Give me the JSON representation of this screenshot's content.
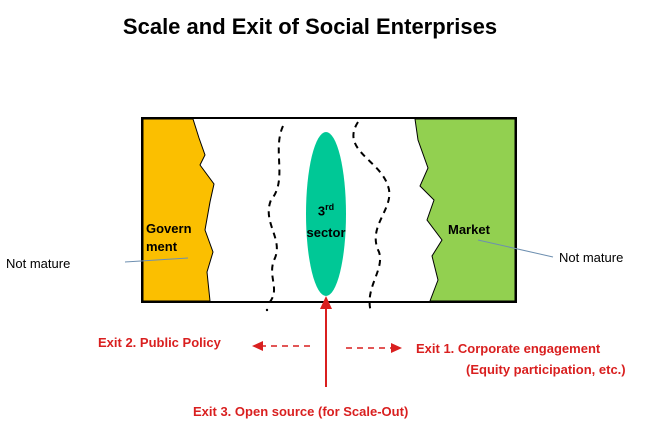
{
  "title": "Scale and Exit of Social Enterprises",
  "regions": {
    "government": {
      "line1": "Govern",
      "line2": "ment"
    },
    "market": "Market",
    "third_sector": {
      "number": "3",
      "superscript": "rd",
      "word": "sector"
    }
  },
  "notes": {
    "left": "Not mature",
    "right": "Not mature"
  },
  "exits": {
    "public_policy": "Exit 2. Public Policy",
    "corporate": "Exit 1. Corporate engagement",
    "corporate_detail": "(Equity participation, etc.)",
    "open_source": "Exit 3. Open source (for Scale-Out)"
  },
  "colors": {
    "government": "#fbbf00",
    "market": "#92d050",
    "third_sector": "#00c896",
    "exit": "#d91f1f"
  }
}
